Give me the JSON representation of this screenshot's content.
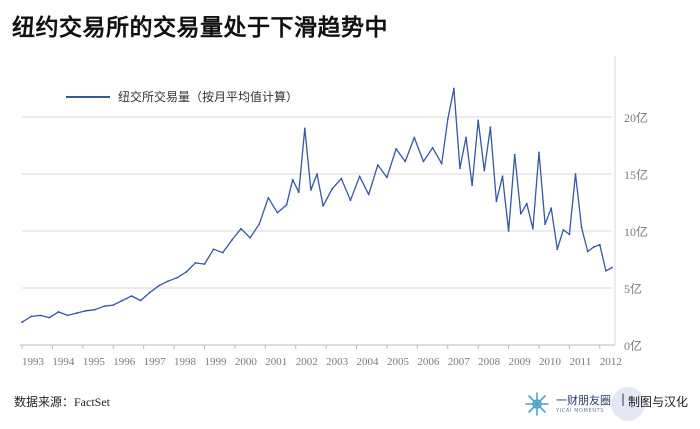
{
  "title": "纽约交易所的交易量处于下滑趋势中",
  "source": "数据来源：FactSet",
  "brand": {
    "logo_icon": "snowflake-icon",
    "name": "一财朋友圈",
    "subtitle": "YICAI MOMENTS",
    "separator": "|",
    "tagline": "制图与汉化"
  },
  "colors": {
    "line": "#3457a6",
    "axis_text": "#7a7a7a",
    "grid": "#d9d9d9",
    "title": "#111111"
  },
  "chart_data": {
    "type": "line",
    "title": "纽约交易所的交易量处于下滑趋势中",
    "xlabel": "",
    "ylabel": "",
    "xlim": [
      1993.0,
      2012.4
    ],
    "ylim": [
      0,
      25
    ],
    "x_ticks": [
      "1993",
      "1994",
      "1995",
      "1996",
      "1997",
      "1998",
      "1999",
      "2000",
      "2001",
      "2002",
      "2003",
      "2004",
      "2005",
      "2006",
      "2007",
      "2008",
      "2009",
      "2010",
      "2011",
      "2012"
    ],
    "y_ticks": [
      {
        "value": 0,
        "label": "0亿"
      },
      {
        "value": 5,
        "label": "5亿"
      },
      {
        "value": 10,
        "label": "10亿"
      },
      {
        "value": 15,
        "label": "15亿"
      },
      {
        "value": 20,
        "label": "20亿"
      }
    ],
    "legend": {
      "position": "top-left",
      "label": "纽交所交易量（按月平均值计算）"
    },
    "grid": "horizontal",
    "y_axis_side": "right",
    "series": [
      {
        "name": "纽交所交易量（按月平均值计算）",
        "x": [
          1993.0,
          1993.3,
          1993.6,
          1993.9,
          1994.2,
          1994.5,
          1994.8,
          1995.1,
          1995.4,
          1995.7,
          1996.0,
          1996.3,
          1996.6,
          1996.9,
          1997.2,
          1997.5,
          1997.8,
          1998.1,
          1998.4,
          1998.7,
          1999.0,
          1999.3,
          1999.6,
          1999.9,
          2000.2,
          2000.5,
          2000.8,
          2001.1,
          2001.4,
          2001.7,
          2001.9,
          2002.1,
          2002.3,
          2002.5,
          2002.7,
          2002.9,
          2003.2,
          2003.5,
          2003.8,
          2004.1,
          2004.4,
          2004.7,
          2005.0,
          2005.3,
          2005.6,
          2005.9,
          2006.2,
          2006.5,
          2006.8,
          2007.0,
          2007.2,
          2007.4,
          2007.6,
          2007.8,
          2008.0,
          2008.2,
          2008.4,
          2008.6,
          2008.8,
          2009.0,
          2009.2,
          2009.4,
          2009.6,
          2009.8,
          2010.0,
          2010.2,
          2010.4,
          2010.6,
          2010.8,
          2011.0,
          2011.2,
          2011.4,
          2011.6,
          2011.8,
          2012.0,
          2012.2,
          2012.4
        ],
        "values": [
          2.0,
          2.5,
          2.6,
          2.4,
          2.9,
          2.6,
          2.8,
          3.0,
          3.1,
          3.4,
          3.5,
          3.9,
          4.3,
          3.9,
          4.6,
          5.2,
          5.6,
          5.9,
          6.4,
          7.2,
          7.1,
          8.4,
          8.1,
          9.2,
          10.2,
          9.4,
          10.6,
          12.9,
          11.6,
          12.3,
          14.5,
          13.4,
          19.0,
          13.6,
          15.0,
          12.2,
          13.7,
          14.6,
          12.7,
          14.8,
          13.2,
          15.8,
          14.7,
          17.2,
          16.1,
          18.2,
          16.1,
          17.3,
          15.9,
          19.8,
          22.5,
          15.5,
          18.2,
          14.0,
          19.7,
          15.3,
          19.1,
          12.6,
          14.8,
          10.0,
          16.7,
          11.5,
          12.4,
          10.2,
          16.9,
          10.6,
          12.0,
          8.4,
          10.1,
          9.7,
          15.0,
          10.3,
          8.2,
          8.6,
          8.8,
          6.5,
          6.8
        ]
      }
    ]
  }
}
